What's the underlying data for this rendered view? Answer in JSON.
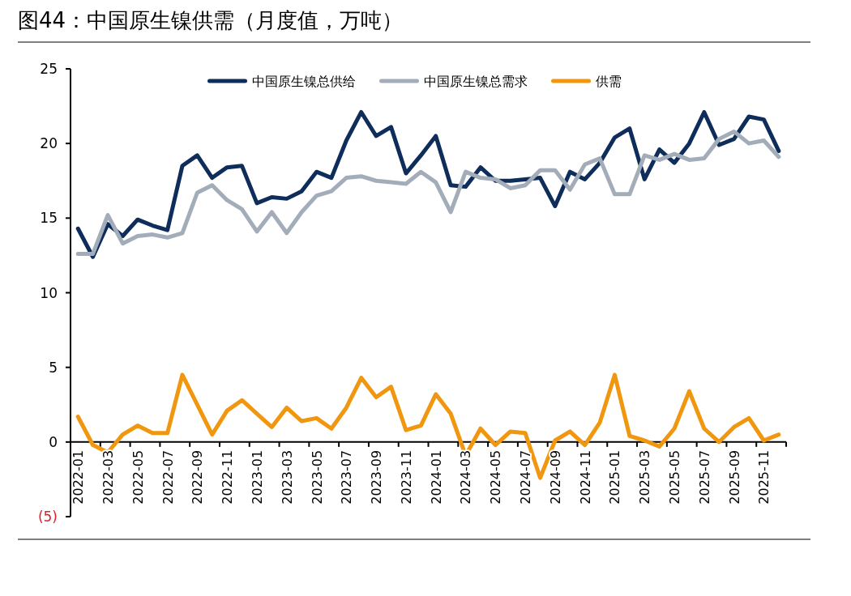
{
  "chart_data": {
    "type": "line",
    "title": "图44：中国原生镍供需（月度值，万吨）",
    "categories": [
      "2022-01",
      null,
      "2022-03",
      null,
      "2022-05",
      null,
      "2022-07",
      null,
      "2022-09",
      null,
      "2022-11",
      null,
      "2023-01",
      null,
      "2023-03",
      null,
      "2023-05",
      null,
      "2023-07",
      null,
      "2023-09",
      null,
      "2023-11",
      null,
      "2024-01",
      null,
      "2024-03",
      null,
      "2024-05",
      null,
      "2024-07",
      null,
      "2024-09",
      null,
      "2024-11",
      null,
      "2025-01",
      null,
      "2025-03",
      null,
      "2025-05",
      null,
      "2025-07",
      null,
      "2025-09",
      null,
      "2025-11",
      null
    ],
    "series": [
      {
        "name": "中国原生镍总供给",
        "color": "#0e2d5a",
        "values": [
          14.3,
          12.4,
          14.6,
          13.8,
          14.9,
          14.5,
          14.2,
          18.5,
          19.2,
          17.7,
          18.4,
          18.5,
          16.0,
          16.4,
          16.3,
          16.8,
          18.1,
          17.7,
          20.2,
          22.1,
          20.5,
          21.1,
          18.0,
          19.2,
          20.5,
          17.2,
          17.1,
          18.4,
          17.5,
          17.5,
          17.6,
          17.7,
          15.8,
          18.1,
          17.6,
          18.7,
          20.4,
          21.0,
          17.6,
          19.6,
          18.7,
          20.0,
          22.1,
          19.9,
          20.3,
          21.8,
          21.6,
          19.5
        ]
      },
      {
        "name": "中国原生镍总需求",
        "color": "#a2adb9",
        "values": [
          12.6,
          12.6,
          15.2,
          13.3,
          13.8,
          13.9,
          13.7,
          14.0,
          16.7,
          17.2,
          16.2,
          15.6,
          14.1,
          15.4,
          14.0,
          15.4,
          16.5,
          16.8,
          17.7,
          17.8,
          17.5,
          17.4,
          17.3,
          18.1,
          17.4,
          15.4,
          18.1,
          17.7,
          17.6,
          17.0,
          17.2,
          18.2,
          18.2,
          16.9,
          18.6,
          19.0,
          16.6,
          16.6,
          19.2,
          18.9,
          19.3,
          18.9,
          19.0,
          20.3,
          20.8,
          20.0,
          20.2,
          19.1
        ]
      },
      {
        "name": "供需",
        "color": "#f0960f",
        "values": [
          1.7,
          -0.2,
          -0.7,
          0.5,
          1.1,
          0.6,
          0.6,
          4.5,
          2.5,
          0.5,
          2.1,
          2.8,
          1.9,
          1.0,
          2.3,
          1.4,
          1.6,
          0.9,
          2.3,
          4.3,
          3.0,
          3.7,
          0.8,
          1.1,
          3.2,
          1.9,
          -0.9,
          0.9,
          -0.2,
          0.7,
          0.6,
          -2.4,
          0.1,
          0.7,
          -0.2,
          1.3,
          4.5,
          0.4,
          0.1,
          -0.3,
          0.9,
          3.4,
          0.9,
          0.0,
          1.0,
          1.6,
          0.1,
          0.5
        ]
      }
    ],
    "ylim": [
      -5,
      25
    ],
    "yticks": [
      {
        "value": -5,
        "label": "(5)"
      },
      0,
      5,
      10,
      15,
      20,
      25
    ],
    "legend": "top",
    "grid": false,
    "marker": "none",
    "line_style": "solid"
  }
}
